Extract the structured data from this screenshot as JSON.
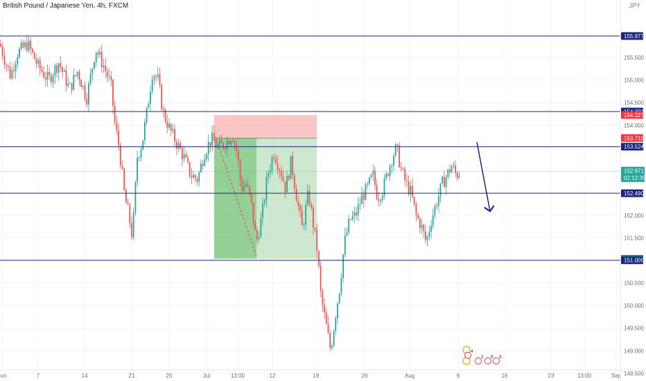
{
  "title": "British Pound / Japanese Yen, 4h, FXCM",
  "scale_unit": "JPY",
  "chart_data": {
    "type": "candlestick",
    "ylim": [
      148.5,
      156.5
    ],
    "y_ticks": [
      "156.000",
      "155.500",
      "155.000",
      "154.500",
      "154.000",
      "153.500",
      "153.000",
      "152.500",
      "152.000",
      "151.500",
      "151.000",
      "150.500",
      "150.000",
      "149.500",
      "149.000",
      "148.500"
    ],
    "x_ticks": [
      "Jun",
      "7",
      "14",
      "21",
      "25",
      "Jul",
      "13:00",
      "12",
      "19",
      "26",
      "Aug",
      "9",
      "16",
      "23",
      "13:00",
      "Sep"
    ],
    "horizontal_levels": [
      155.977,
      154.303,
      153.524,
      152.49,
      151.005
    ],
    "position_levels": {
      "stop": 154.227,
      "entry": 153.715,
      "target": 151.04
    },
    "last_price": "152.971",
    "countdown": "02:12:39",
    "price_tags": [
      {
        "value": "155.977",
        "color": "#1a237e"
      },
      {
        "value": "154.303",
        "color": "#1a237e"
      },
      {
        "value": "154.227",
        "color": "#f23645"
      },
      {
        "value": "153.715",
        "color": "#f23645"
      },
      {
        "value": "153.524",
        "color": "#1a237e"
      },
      {
        "value": "152.490",
        "color": "#1a237e"
      },
      {
        "value": "151.040",
        "color": "#089981"
      },
      {
        "value": "151.005",
        "color": "#1a237e"
      }
    ],
    "up_color": "#26a69a",
    "down_color": "#ef5350",
    "line_color": "#1a237e",
    "event_badges": [
      "4",
      "2",
      "9",
      "3"
    ]
  }
}
